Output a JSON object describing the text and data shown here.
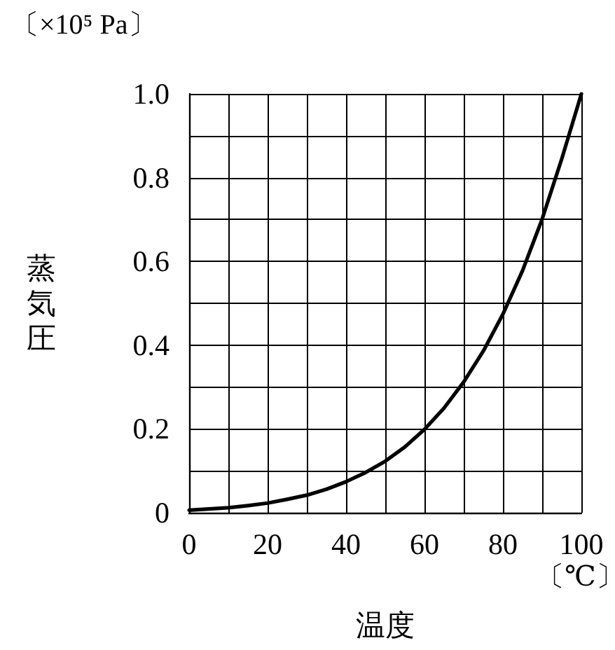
{
  "chart_data": {
    "type": "line",
    "xlabel": "温度",
    "ylabel": "蒸気圧",
    "annotations": [
      "〔×10⁵ Pa〕",
      "〔℃〕"
    ],
    "x": [
      0,
      5,
      10,
      15,
      20,
      25,
      30,
      35,
      40,
      45,
      50,
      55,
      60,
      65,
      70,
      75,
      80,
      85,
      90,
      95,
      100
    ],
    "series": [
      {
        "color": "#000000",
        "values": [
          0.006,
          0.009,
          0.012,
          0.017,
          0.023,
          0.032,
          0.042,
          0.056,
          0.074,
          0.096,
          0.123,
          0.157,
          0.199,
          0.25,
          0.312,
          0.386,
          0.474,
          0.578,
          0.701,
          0.845,
          1.0
        ]
      }
    ],
    "xlim": [
      0,
      100
    ],
    "ylim": [
      0,
      1
    ],
    "xticks": [
      0,
      {
        "value": 10,
        "label": null
      },
      20,
      {
        "value": 30,
        "label": null
      },
      40,
      {
        "value": 50,
        "label": null
      },
      60,
      {
        "value": 70,
        "label": null
      },
      80,
      {
        "value": 90,
        "label": null
      },
      100
    ],
    "yticks": [
      0,
      {
        "value": 0.1,
        "label": null
      },
      0.2,
      {
        "value": 0.3,
        "label": null
      },
      0.4,
      {
        "value": 0.5,
        "label": null
      },
      0.6,
      {
        "value": 0.7,
        "label": null
      },
      0.8,
      {
        "value": 0.9,
        "label": null
      },
      {
        "value": 1,
        "label": "1.0"
      }
    ],
    "grid": true,
    "marker": "none",
    "line_style": "solid"
  }
}
